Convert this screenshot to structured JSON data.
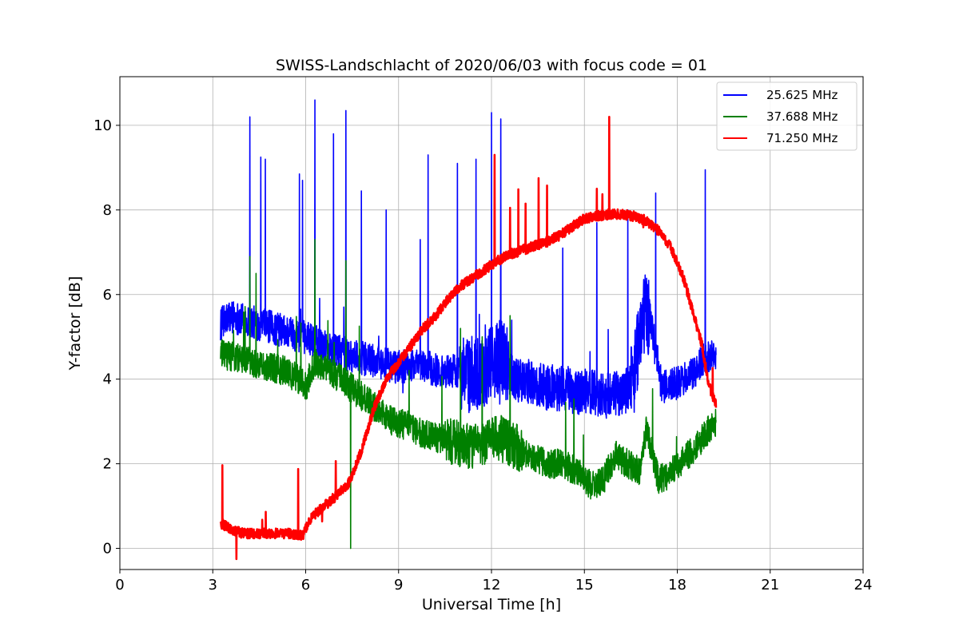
{
  "chart_data": {
    "type": "line",
    "title": "SWISS-Landschlacht of 2020/06/03 with focus code = 01",
    "xlabel": "Universal Time [h]",
    "ylabel": "Y-factor [dB]",
    "xlim": [
      0,
      24
    ],
    "ylim": [
      -0.5,
      11.15
    ],
    "xticks": [
      0,
      3,
      6,
      9,
      12,
      15,
      18,
      21,
      24
    ],
    "yticks": [
      0,
      2,
      4,
      6,
      8,
      10
    ],
    "grid": true,
    "legend_position": "top-right",
    "series": [
      {
        "name": "25.625 MHz",
        "color": "#0000ff",
        "x": [
          3.25,
          3.6,
          4.0,
          4.5,
          5.0,
          5.5,
          5.9,
          6.3,
          6.8,
          7.3,
          7.8,
          8.3,
          8.8,
          9.3,
          9.8,
          10.3,
          10.8,
          11.3,
          11.8,
          12.3,
          12.8,
          13.3,
          13.8,
          14.3,
          14.8,
          15.3,
          15.8,
          16.3,
          16.6,
          16.8,
          17.1,
          17.5,
          18.0,
          18.5,
          18.9,
          19.25
        ],
        "y": [
          5.3,
          5.5,
          5.4,
          5.3,
          5.2,
          5.1,
          5.0,
          4.9,
          4.7,
          4.6,
          4.5,
          4.4,
          4.3,
          4.3,
          4.3,
          4.2,
          4.2,
          4.1,
          4.2,
          4.6,
          4.0,
          3.9,
          3.8,
          3.8,
          3.7,
          3.7,
          3.6,
          3.7,
          4.0,
          5.3,
          5.6,
          3.8,
          3.9,
          4.1,
          4.5,
          4.6
        ],
        "spikes": [
          [
            4.2,
            10.2
          ],
          [
            4.55,
            9.25
          ],
          [
            4.7,
            9.2
          ],
          [
            5.8,
            8.85
          ],
          [
            5.9,
            8.7
          ],
          [
            6.3,
            10.6
          ],
          [
            6.9,
            9.8
          ],
          [
            7.3,
            10.35
          ],
          [
            7.8,
            8.45
          ],
          [
            8.6,
            8.0
          ],
          [
            9.7,
            7.3
          ],
          [
            9.95,
            9.3
          ],
          [
            10.9,
            9.1
          ],
          [
            11.5,
            9.2
          ],
          [
            12.0,
            10.3
          ],
          [
            12.3,
            10.15
          ],
          [
            14.3,
            7.1
          ],
          [
            15.4,
            7.7
          ],
          [
            16.4,
            8.0
          ],
          [
            17.3,
            8.4
          ],
          [
            18.9,
            8.95
          ]
        ]
      },
      {
        "name": "37.688 MHz",
        "color": "#008000",
        "x": [
          3.25,
          3.8,
          4.3,
          4.8,
          5.3,
          5.8,
          6.0,
          6.3,
          6.8,
          7.3,
          7.8,
          8.3,
          8.8,
          9.3,
          9.8,
          10.3,
          10.8,
          11.3,
          11.8,
          12.3,
          12.8,
          13.3,
          13.8,
          14.3,
          14.8,
          15.2,
          15.6,
          16.0,
          16.4,
          16.8,
          17.0,
          17.4,
          17.8,
          18.2,
          18.6,
          19.0,
          19.25
        ],
        "y": [
          4.6,
          4.5,
          4.4,
          4.3,
          4.2,
          4.0,
          3.8,
          4.4,
          4.2,
          3.9,
          3.6,
          3.3,
          3.0,
          2.9,
          2.7,
          2.6,
          2.5,
          2.4,
          2.5,
          2.6,
          2.4,
          2.2,
          2.0,
          2.0,
          1.8,
          1.5,
          1.6,
          2.2,
          2.0,
          1.8,
          2.8,
          1.6,
          1.8,
          2.1,
          2.4,
          2.8,
          3.0
        ],
        "spikes": [
          [
            4.2,
            6.9
          ],
          [
            4.4,
            6.5
          ],
          [
            6.3,
            7.3
          ],
          [
            7.3,
            6.8
          ],
          [
            7.45,
            7.5
          ],
          [
            7.45,
            0.0
          ],
          [
            11.0,
            5.2
          ],
          [
            11.7,
            5.0
          ],
          [
            12.6,
            5.5
          ]
        ]
      },
      {
        "name": "71.250 MHz",
        "color": "#ff0000",
        "x": [
          3.25,
          3.6,
          4.0,
          4.5,
          5.0,
          5.5,
          5.9,
          6.2,
          6.6,
          7.0,
          7.4,
          7.8,
          8.2,
          8.6,
          9.0,
          9.4,
          9.8,
          10.2,
          10.6,
          11.0,
          11.4,
          11.8,
          12.2,
          12.6,
          13.0,
          13.4,
          13.8,
          14.2,
          14.6,
          15.0,
          15.4,
          15.8,
          16.2,
          16.6,
          17.0,
          17.4,
          17.8,
          18.2,
          18.5,
          18.8,
          19.0,
          19.25
        ],
        "y": [
          0.6,
          0.45,
          0.35,
          0.35,
          0.35,
          0.35,
          0.3,
          0.75,
          1.0,
          1.25,
          1.55,
          2.3,
          3.3,
          4.0,
          4.4,
          4.8,
          5.2,
          5.5,
          5.9,
          6.2,
          6.4,
          6.6,
          6.8,
          6.95,
          7.05,
          7.15,
          7.25,
          7.4,
          7.6,
          7.8,
          7.85,
          7.9,
          7.9,
          7.85,
          7.75,
          7.5,
          7.1,
          6.4,
          5.6,
          4.8,
          3.9,
          3.4
        ],
        "spikes": [
          [
            12.1,
            9.3
          ],
          [
            12.6,
            8.05
          ],
          [
            13.1,
            8.15
          ],
          [
            15.8,
            10.2
          ],
          [
            15.4,
            8.5
          ]
        ]
      }
    ]
  }
}
